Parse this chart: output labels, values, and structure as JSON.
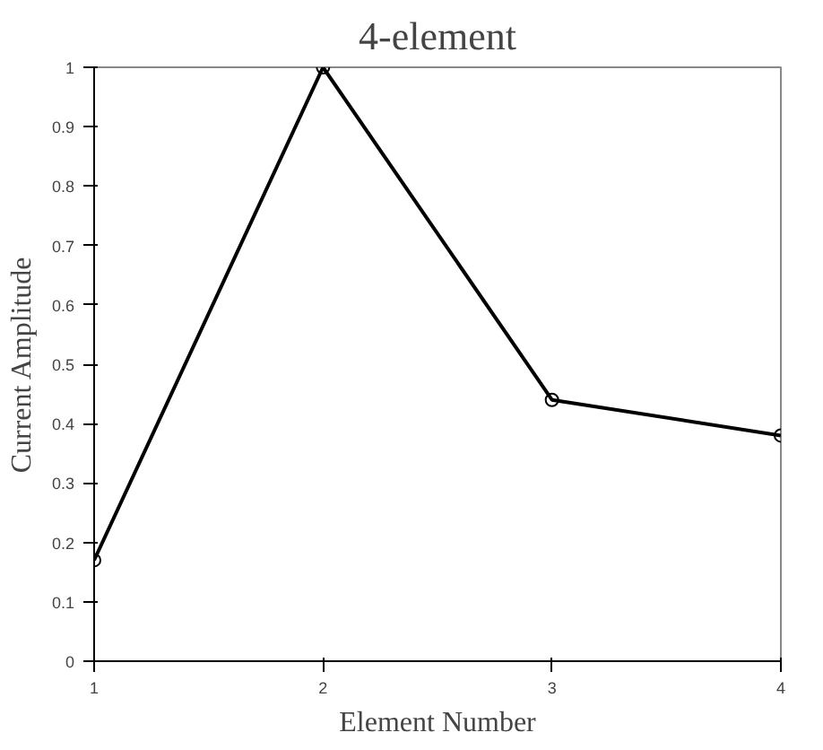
{
  "chart_data": {
    "type": "line",
    "title": "4-element",
    "xlabel": "Element Number",
    "ylabel": "Current Amplitude",
    "x": [
      1,
      2,
      3,
      4
    ],
    "series": [
      {
        "color": "#000000",
        "values": [
          0.17,
          1.0,
          0.44,
          0.38
        ]
      }
    ],
    "xlim": [
      1,
      4
    ],
    "xticks": [
      1,
      2,
      3,
      4
    ],
    "ylim": [
      0,
      1
    ],
    "yticks": [
      0,
      0.1,
      0.2,
      0.3,
      0.4,
      0.5,
      0.6,
      0.7,
      0.8,
      0.9,
      1
    ],
    "marker": "circle",
    "line_style": "solid"
  }
}
